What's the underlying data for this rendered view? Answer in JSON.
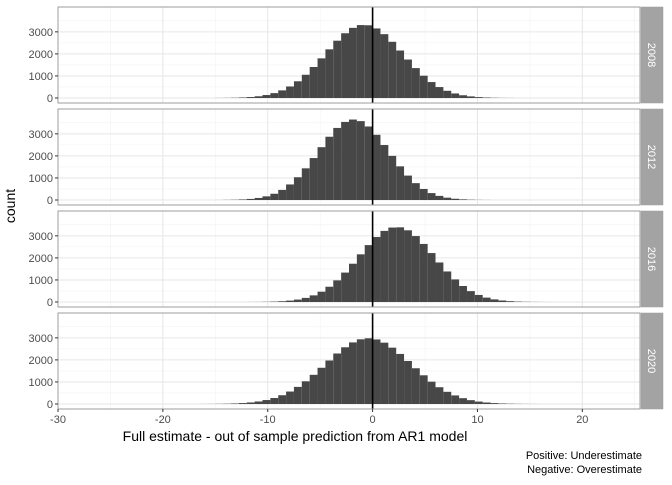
{
  "chart_data": {
    "type": "bar",
    "subtype": "histogram-facets",
    "xlabel": "Full estimate - out of sample prediction from AR1 model",
    "ylabel": "count",
    "caption_lines": [
      "Positive: Underestimate",
      "Negative: Overestimate"
    ],
    "x_range": [
      -30,
      25.5
    ],
    "x_ticks": [
      -30,
      -20,
      -10,
      0,
      10,
      20
    ],
    "y_range": [
      0,
      3900
    ],
    "y_ticks": [
      0,
      1000,
      2000,
      3000
    ],
    "bin_width": 0.75,
    "vline_x": 0,
    "grid": true,
    "colors": {
      "bar": "#474747",
      "panel_border": "#9e9e9e",
      "strip": "#a3a3a3",
      "strip_text": "#ffffff",
      "grid_major": "#e6e6e6",
      "grid_minor": "#f2f2f2",
      "text": "#4d4d4d"
    },
    "facets": [
      {
        "name": "2008",
        "mean": -0.8,
        "sd": 3.68,
        "peak": 3320
      },
      {
        "name": "2012",
        "mean": -1.8,
        "sd": 3.35,
        "peak": 3650
      },
      {
        "name": "2016",
        "mean": 2.3,
        "sd": 3.6,
        "peak": 3400
      },
      {
        "name": "2020",
        "mean": -0.4,
        "sd": 4.1,
        "peak": 2980
      }
    ]
  }
}
